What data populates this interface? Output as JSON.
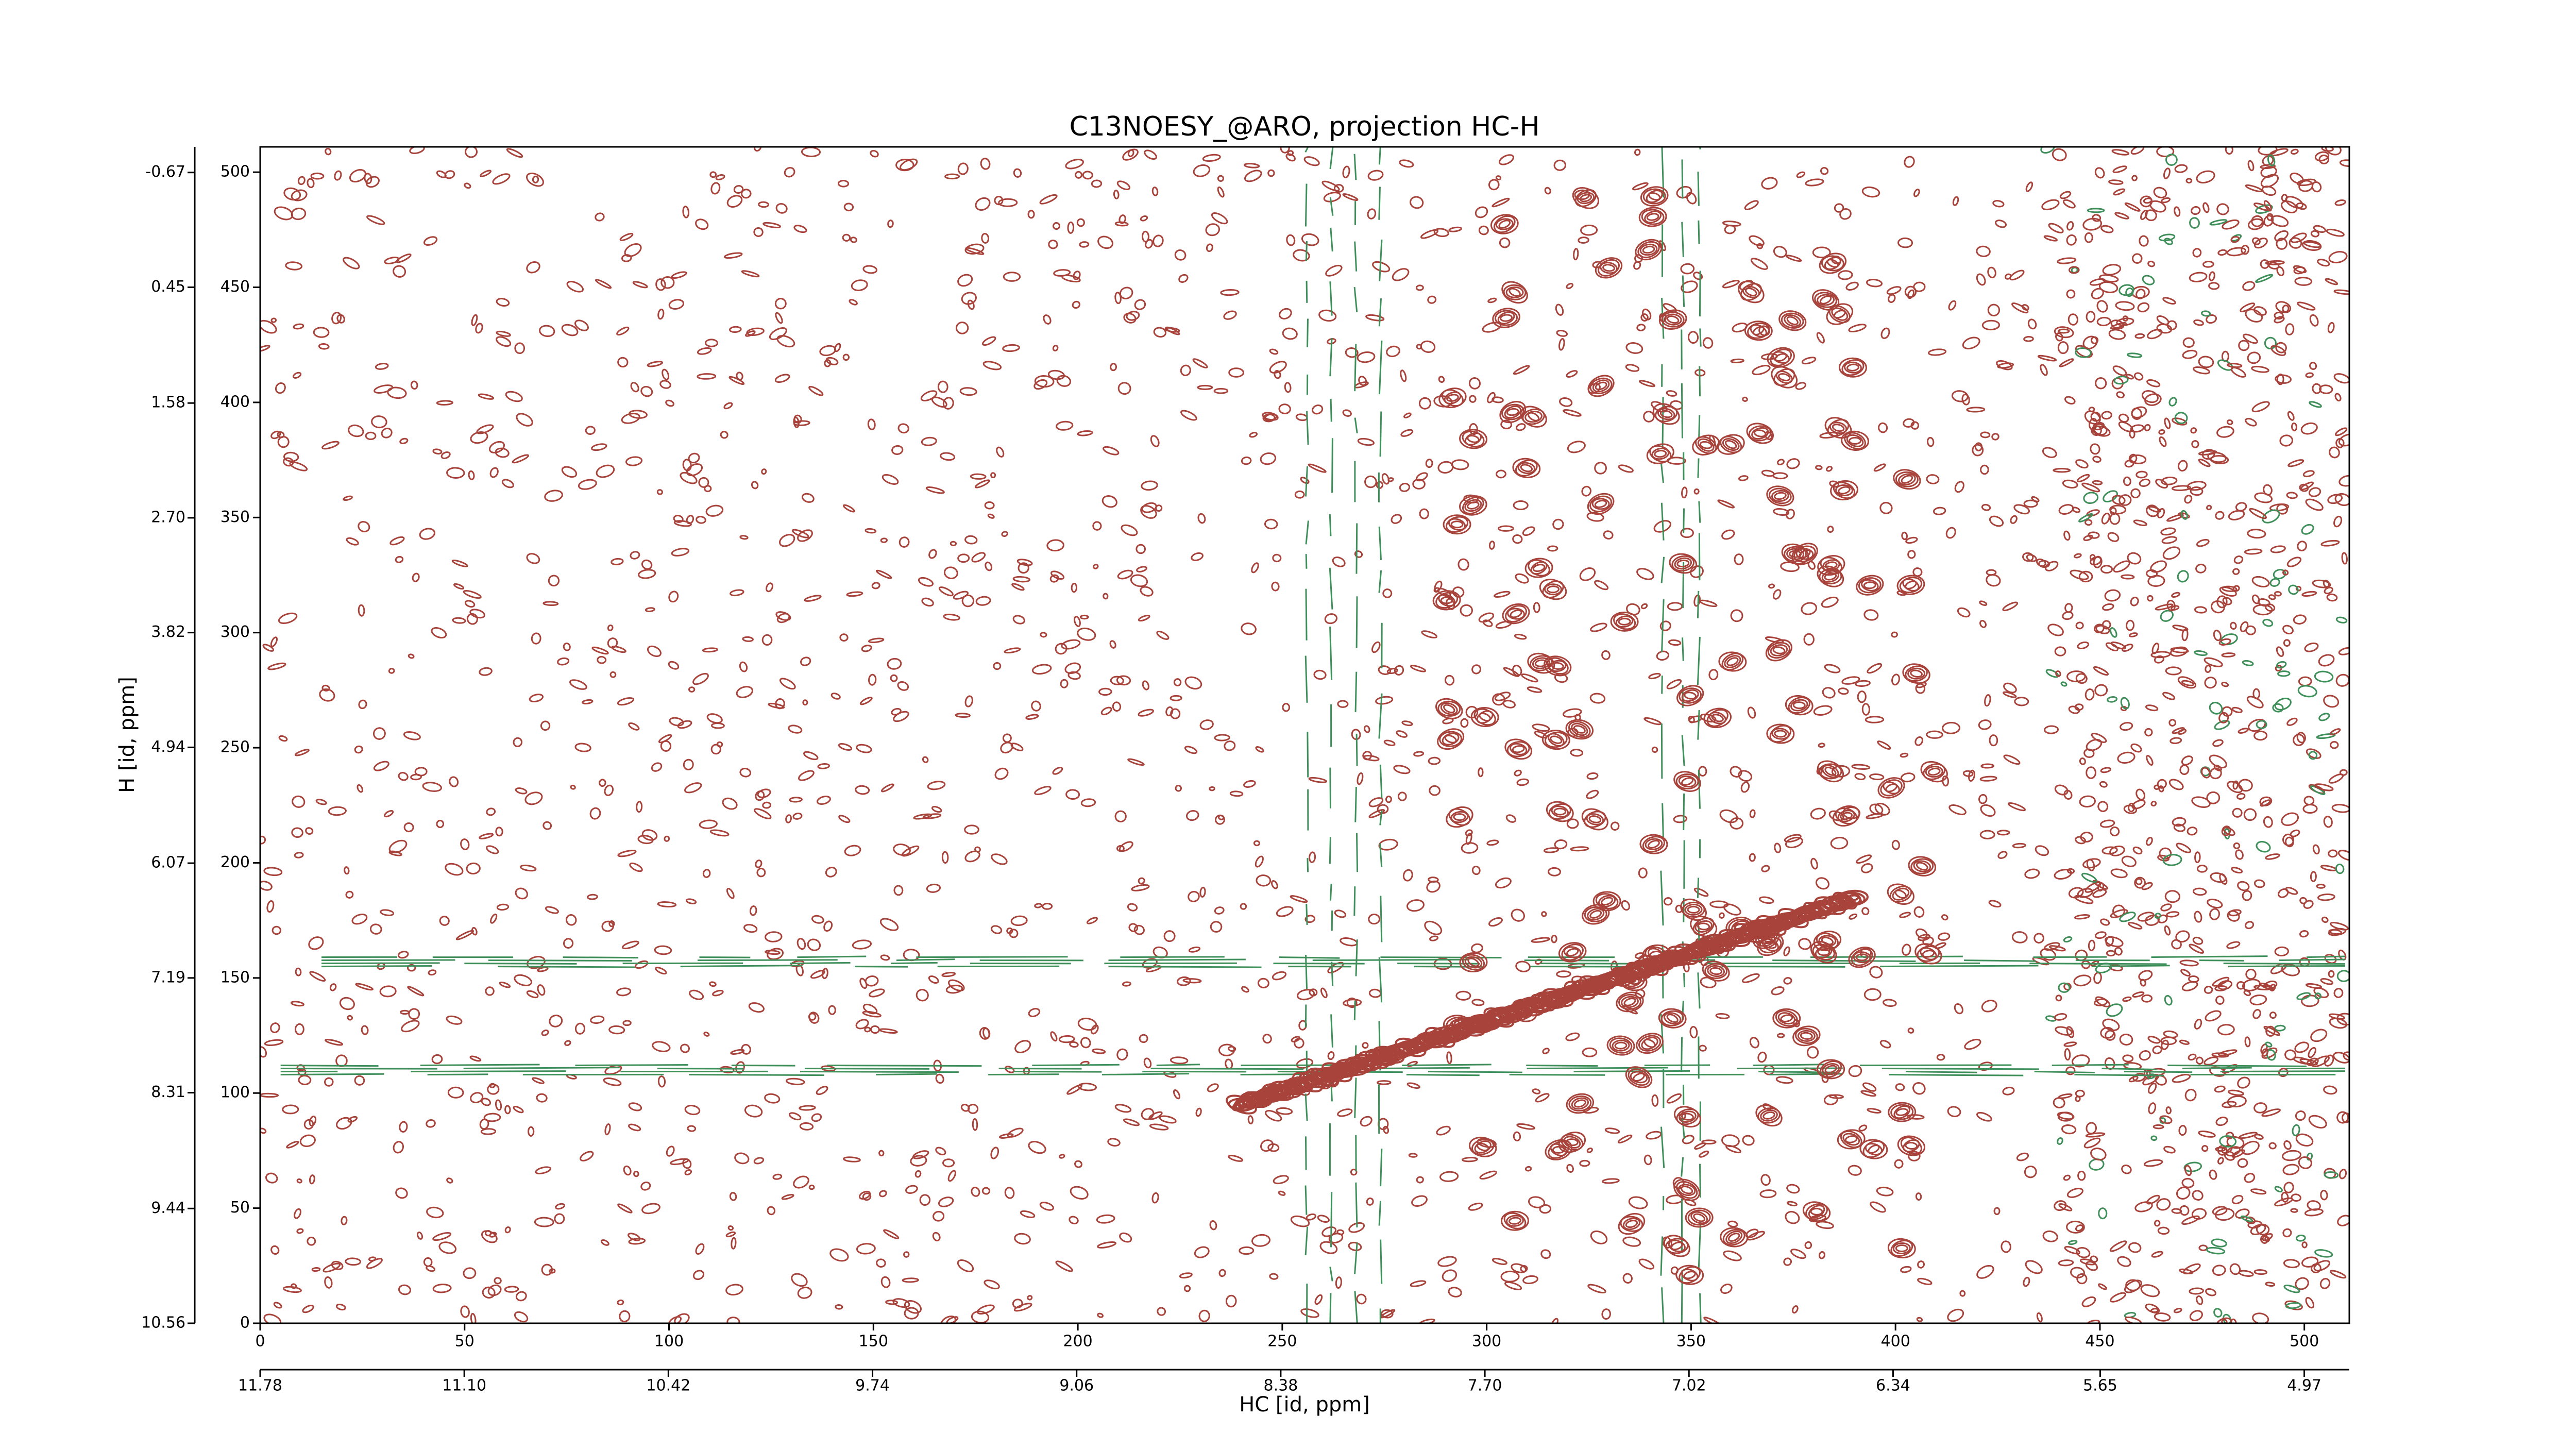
{
  "chart_data": {
    "type": "contour",
    "title": "C13NOESY_@ARO, projection HC-H",
    "xlabel": "HC [id, ppm]",
    "ylabel": "H [id, ppm]",
    "xlim": [
      0,
      511
    ],
    "ylim": [
      0,
      511
    ],
    "xticks": [
      0,
      50,
      100,
      150,
      200,
      250,
      300,
      350,
      400,
      450,
      500
    ],
    "yticks": [
      0,
      50,
      100,
      150,
      200,
      250,
      300,
      350,
      400,
      450,
      500
    ],
    "x2lim": [
      11.78,
      4.82
    ],
    "x2ticks": [
      {
        "value": 11.78,
        "label": "11.78"
      },
      {
        "value": 11.1,
        "label": "11.10"
      },
      {
        "value": 10.42,
        "label": "10.42"
      },
      {
        "value": 9.74,
        "label": "9.74"
      },
      {
        "value": 9.06,
        "label": "9.06"
      },
      {
        "value": 8.38,
        "label": "8.38"
      },
      {
        "value": 7.7,
        "label": "7.70"
      },
      {
        "value": 7.02,
        "label": "7.02"
      },
      {
        "value": 6.34,
        "label": "6.34"
      },
      {
        "value": 5.65,
        "label": "5.65"
      },
      {
        "value": 4.97,
        "label": "4.97"
      }
    ],
    "y2lim": [
      10.56,
      -0.92
    ],
    "y2ticks": [
      {
        "value": 10.56,
        "label": "10.56"
      },
      {
        "value": 9.44,
        "label": "9.44"
      },
      {
        "value": 8.31,
        "label": "8.31"
      },
      {
        "value": 7.19,
        "label": "7.19"
      },
      {
        "value": 6.07,
        "label": "6.07"
      },
      {
        "value": 4.94,
        "label": "4.94"
      },
      {
        "value": 3.82,
        "label": "3.82"
      },
      {
        "value": 2.7,
        "label": "2.70"
      },
      {
        "value": 1.58,
        "label": "1.58"
      },
      {
        "value": 0.45,
        "label": "0.45"
      },
      {
        "value": -0.67,
        "label": "-0.67"
      }
    ],
    "colors": {
      "positive": "#a8433b",
      "negative": "#3f8f5a"
    }
  }
}
